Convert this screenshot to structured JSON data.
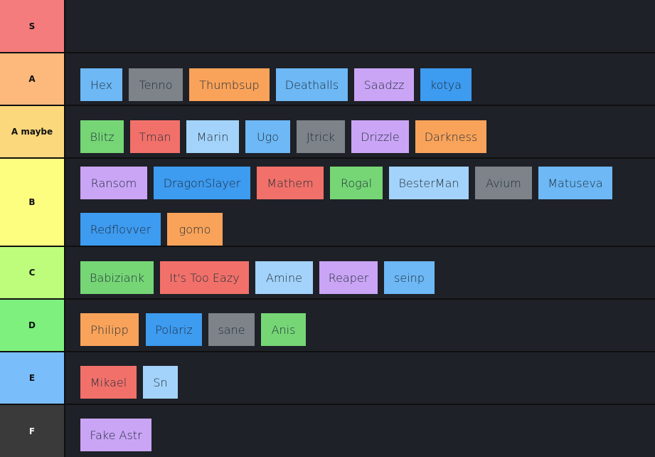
{
  "colors": {
    "blue": "#3d9bf0",
    "lightblue": "#a3d3fa",
    "skyblue": "#6db8f5",
    "gray": "#7d8389",
    "orange": "#f9a35a",
    "purple": "#caa5f6",
    "green": "#76d676",
    "red": "#f1716a"
  },
  "tiers": [
    {
      "label": "S",
      "color": "#f57c7c",
      "items": []
    },
    {
      "label": "A",
      "color": "#fdb97b",
      "items": [
        {
          "name": "Hex",
          "color": "skyblue"
        },
        {
          "name": "Tenno",
          "color": "gray"
        },
        {
          "name": "Thumbsup",
          "color": "orange"
        },
        {
          "name": "Deathalls",
          "color": "skyblue"
        },
        {
          "name": "Saadzz",
          "color": "purple"
        },
        {
          "name": "kotya",
          "color": "blue"
        }
      ]
    },
    {
      "label": "A maybe",
      "color": "#fcd87c",
      "items": [
        {
          "name": "Blitz",
          "color": "green"
        },
        {
          "name": "Tman",
          "color": "red"
        },
        {
          "name": "Marin",
          "color": "lightblue"
        },
        {
          "name": "Ugo",
          "color": "skyblue"
        },
        {
          "name": "Jtrick",
          "color": "gray"
        },
        {
          "name": "Drizzle",
          "color": "purple"
        },
        {
          "name": "Darkness",
          "color": "orange"
        }
      ]
    },
    {
      "label": "B",
      "color": "#fdfd7f",
      "items": [
        {
          "name": "Ransom",
          "color": "purple"
        },
        {
          "name": "DragonSlayer",
          "color": "blue"
        },
        {
          "name": "Mathem",
          "color": "red"
        },
        {
          "name": "Rogal",
          "color": "green"
        },
        {
          "name": "BesterMan",
          "color": "lightblue"
        },
        {
          "name": "Avium",
          "color": "gray"
        },
        {
          "name": "Matuseva",
          "color": "skyblue"
        },
        {
          "name": "Redflovver",
          "color": "blue"
        },
        {
          "name": "gomo",
          "color": "orange"
        }
      ]
    },
    {
      "label": "C",
      "color": "#bdfd7b",
      "items": [
        {
          "name": "Babiziank",
          "color": "green"
        },
        {
          "name": "It's Too Eazy",
          "color": "red"
        },
        {
          "name": "Amine",
          "color": "lightblue"
        },
        {
          "name": "Reaper",
          "color": "purple"
        },
        {
          "name": "seinp",
          "color": "skyblue"
        }
      ]
    },
    {
      "label": "D",
      "color": "#7df07d",
      "items": [
        {
          "name": "Philipp",
          "color": "orange"
        },
        {
          "name": "Polariz",
          "color": "blue"
        },
        {
          "name": "sane",
          "color": "gray"
        },
        {
          "name": "Anis",
          "color": "green"
        }
      ]
    },
    {
      "label": "E",
      "color": "#79bdfa",
      "items": [
        {
          "name": "Mikael",
          "color": "red"
        },
        {
          "name": "Sn",
          "color": "lightblue"
        }
      ]
    },
    {
      "label": "F",
      "color": "#3a3a3a",
      "items": [
        {
          "name": "Fake Astr",
          "color": "purple"
        }
      ]
    }
  ]
}
